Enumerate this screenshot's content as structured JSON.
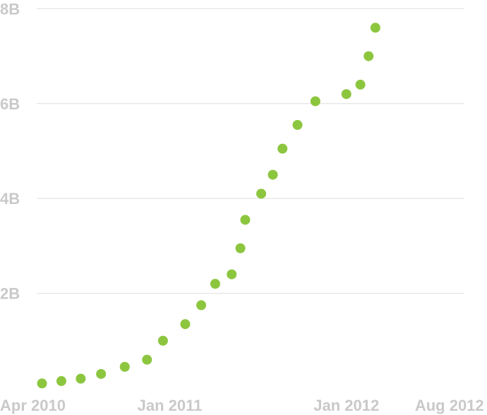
{
  "chart_data": {
    "type": "scatter",
    "title": "",
    "xlabel": "",
    "ylabel": "",
    "grid": true,
    "legend": "none",
    "x_domain": [
      "2010-04-01",
      "2012-09-01"
    ],
    "ylim": [
      0,
      8
    ],
    "y_ticks": [
      {
        "value": 2,
        "label": "2B"
      },
      {
        "value": 4,
        "label": "4B"
      },
      {
        "value": 6,
        "label": "6B"
      },
      {
        "value": 8,
        "label": "8B"
      }
    ],
    "x_ticks": [
      {
        "date": "2010-04-01",
        "label": "Apr 2010",
        "anchor": "start"
      },
      {
        "date": "2011-01-01",
        "label": "Jan 2011",
        "anchor": "middle"
      },
      {
        "date": "2012-01-01",
        "label": "Jan 2012",
        "anchor": "middle"
      },
      {
        "date": "2012-08-01",
        "label": "Aug 2012",
        "anchor": "middle"
      }
    ],
    "color": "#8cc63f",
    "series": [
      {
        "points": [
          {
            "x": "2010-04-12",
            "y": 0.1
          },
          {
            "x": "2010-05-22",
            "y": 0.15
          },
          {
            "x": "2010-07-01",
            "y": 0.2
          },
          {
            "x": "2010-08-12",
            "y": 0.3
          },
          {
            "x": "2010-09-30",
            "y": 0.45
          },
          {
            "x": "2010-11-15",
            "y": 0.6
          },
          {
            "x": "2010-12-18",
            "y": 1.0
          },
          {
            "x": "2011-02-02",
            "y": 1.35
          },
          {
            "x": "2011-03-07",
            "y": 1.75
          },
          {
            "x": "2011-04-05",
            "y": 2.2
          },
          {
            "x": "2011-05-09",
            "y": 2.4
          },
          {
            "x": "2011-05-27",
            "y": 2.95
          },
          {
            "x": "2011-06-06",
            "y": 3.55
          },
          {
            "x": "2011-07-09",
            "y": 4.1
          },
          {
            "x": "2011-08-02",
            "y": 4.5
          },
          {
            "x": "2011-08-22",
            "y": 5.05
          },
          {
            "x": "2011-09-22",
            "y": 5.55
          },
          {
            "x": "2011-10-29",
            "y": 6.05
          },
          {
            "x": "2012-01-01",
            "y": 6.2
          },
          {
            "x": "2012-01-30",
            "y": 6.4
          },
          {
            "x": "2012-02-16",
            "y": 7.0
          },
          {
            "x": "2012-03-01",
            "y": 7.6
          }
        ]
      }
    ]
  }
}
